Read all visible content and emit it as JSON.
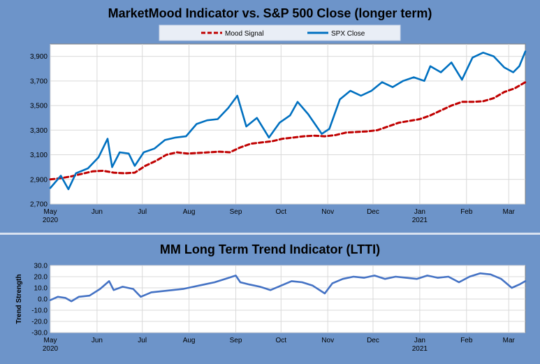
{
  "chart_data": [
    {
      "type": "line",
      "title": "MarketMood Indicator vs. S&P 500 Close (longer term)",
      "legend_position": "top",
      "ylim": [
        2700,
        4000
      ],
      "yticks": [
        "2,700",
        "2,900",
        "3,100",
        "3,300",
        "3,500",
        "3,700",
        "3,900"
      ],
      "ytick_values": [
        2700,
        2900,
        3100,
        3300,
        3500,
        3700,
        3900
      ],
      "grid": true,
      "x_start": "2020-05-01",
      "x_end": "2021-03-12",
      "month_labels": [
        {
          "label": "May",
          "date": "2020-05-01"
        },
        {
          "label": "Jun",
          "date": "2020-06-01"
        },
        {
          "label": "Jul",
          "date": "2020-07-01"
        },
        {
          "label": "Aug",
          "date": "2020-08-01"
        },
        {
          "label": "Sep",
          "date": "2020-09-01"
        },
        {
          "label": "Oct",
          "date": "2020-10-01"
        },
        {
          "label": "Nov",
          "date": "2020-11-01"
        },
        {
          "label": "Dec",
          "date": "2020-12-01"
        },
        {
          "label": "Jan",
          "date": "2021-01-01"
        },
        {
          "label": "Feb",
          "date": "2021-02-01"
        },
        {
          "label": "Mar",
          "date": "2021-03-01"
        }
      ],
      "year_labels": [
        {
          "label": "2020",
          "date": "2020-05-01"
        },
        {
          "label": "2021",
          "date": "2021-01-01"
        }
      ],
      "series": [
        {
          "name": "Mood Signal",
          "color": "#c00000",
          "style": "dashed",
          "points": [
            [
              "2020-05-01",
              2900
            ],
            [
              "2020-05-08",
              2910
            ],
            [
              "2020-05-15",
              2925
            ],
            [
              "2020-05-22",
              2945
            ],
            [
              "2020-05-29",
              2965
            ],
            [
              "2020-06-05",
              2970
            ],
            [
              "2020-06-12",
              2955
            ],
            [
              "2020-06-19",
              2950
            ],
            [
              "2020-06-26",
              2955
            ],
            [
              "2020-07-03",
              3010
            ],
            [
              "2020-07-10",
              3050
            ],
            [
              "2020-07-17",
              3100
            ],
            [
              "2020-07-24",
              3120
            ],
            [
              "2020-07-31",
              3110
            ],
            [
              "2020-08-07",
              3115
            ],
            [
              "2020-08-14",
              3120
            ],
            [
              "2020-08-21",
              3125
            ],
            [
              "2020-08-28",
              3120
            ],
            [
              "2020-09-04",
              3160
            ],
            [
              "2020-09-11",
              3190
            ],
            [
              "2020-09-18",
              3200
            ],
            [
              "2020-09-25",
              3210
            ],
            [
              "2020-10-02",
              3230
            ],
            [
              "2020-10-09",
              3240
            ],
            [
              "2020-10-16",
              3250
            ],
            [
              "2020-10-23",
              3255
            ],
            [
              "2020-10-30",
              3250
            ],
            [
              "2020-11-06",
              3260
            ],
            [
              "2020-11-13",
              3280
            ],
            [
              "2020-11-20",
              3285
            ],
            [
              "2020-11-27",
              3290
            ],
            [
              "2020-12-04",
              3300
            ],
            [
              "2020-12-11",
              3330
            ],
            [
              "2020-12-18",
              3360
            ],
            [
              "2020-12-25",
              3375
            ],
            [
              "2021-01-01",
              3390
            ],
            [
              "2021-01-08",
              3420
            ],
            [
              "2021-01-15",
              3460
            ],
            [
              "2021-01-22",
              3500
            ],
            [
              "2021-01-29",
              3530
            ],
            [
              "2021-02-05",
              3530
            ],
            [
              "2021-02-12",
              3535
            ],
            [
              "2021-02-19",
              3560
            ],
            [
              "2021-02-26",
              3610
            ],
            [
              "2021-03-05",
              3640
            ],
            [
              "2021-03-12",
              3690
            ]
          ]
        },
        {
          "name": "SPX Close",
          "color": "#0070c0",
          "style": "solid",
          "points": [
            [
              "2020-05-01",
              2830
            ],
            [
              "2020-05-08",
              2930
            ],
            [
              "2020-05-13",
              2820
            ],
            [
              "2020-05-18",
              2950
            ],
            [
              "2020-05-26",
              2990
            ],
            [
              "2020-06-02",
              3080
            ],
            [
              "2020-06-08",
              3230
            ],
            [
              "2020-06-11",
              3000
            ],
            [
              "2020-06-16",
              3120
            ],
            [
              "2020-06-22",
              3110
            ],
            [
              "2020-06-26",
              3010
            ],
            [
              "2020-07-02",
              3120
            ],
            [
              "2020-07-09",
              3150
            ],
            [
              "2020-07-16",
              3220
            ],
            [
              "2020-07-23",
              3240
            ],
            [
              "2020-07-30",
              3250
            ],
            [
              "2020-08-06",
              3350
            ],
            [
              "2020-08-13",
              3380
            ],
            [
              "2020-08-20",
              3390
            ],
            [
              "2020-08-27",
              3480
            ],
            [
              "2020-09-02",
              3580
            ],
            [
              "2020-09-08",
              3330
            ],
            [
              "2020-09-15",
              3400
            ],
            [
              "2020-09-23",
              3240
            ],
            [
              "2020-09-30",
              3360
            ],
            [
              "2020-10-07",
              3420
            ],
            [
              "2020-10-12",
              3530
            ],
            [
              "2020-10-19",
              3430
            ],
            [
              "2020-10-28",
              3270
            ],
            [
              "2020-11-02",
              3310
            ],
            [
              "2020-11-09",
              3550
            ],
            [
              "2020-11-16",
              3620
            ],
            [
              "2020-11-23",
              3580
            ],
            [
              "2020-11-30",
              3620
            ],
            [
              "2020-12-07",
              3690
            ],
            [
              "2020-12-14",
              3650
            ],
            [
              "2020-12-21",
              3700
            ],
            [
              "2020-12-28",
              3730
            ],
            [
              "2021-01-04",
              3700
            ],
            [
              "2021-01-08",
              3820
            ],
            [
              "2021-01-15",
              3770
            ],
            [
              "2021-01-22",
              3850
            ],
            [
              "2021-01-29",
              3710
            ],
            [
              "2021-02-05",
              3890
            ],
            [
              "2021-02-12",
              3930
            ],
            [
              "2021-02-19",
              3900
            ],
            [
              "2021-02-26",
              3810
            ],
            [
              "2021-03-04",
              3770
            ],
            [
              "2021-03-08",
              3820
            ],
            [
              "2021-03-12",
              3940
            ]
          ]
        }
      ]
    },
    {
      "type": "line",
      "title": "MM Long Term Trend Indicator (LTTI)",
      "ylabel": "Trend Strength",
      "ylim": [
        -30,
        30
      ],
      "yticks": [
        "-30.0",
        "-20.0",
        "-10.0",
        "0.0",
        "10.0",
        "20.0",
        "30.0"
      ],
      "ytick_values": [
        -30,
        -20,
        -10,
        0,
        10,
        20,
        30
      ],
      "grid": true,
      "x_start": "2020-05-01",
      "x_end": "2021-03-12",
      "month_labels": [
        {
          "label": "May",
          "date": "2020-05-01"
        },
        {
          "label": "Jun",
          "date": "2020-06-01"
        },
        {
          "label": "Jul",
          "date": "2020-07-01"
        },
        {
          "label": "Aug",
          "date": "2020-08-01"
        },
        {
          "label": "Sep",
          "date": "2020-09-01"
        },
        {
          "label": "Oct",
          "date": "2020-10-01"
        },
        {
          "label": "Nov",
          "date": "2020-11-01"
        },
        {
          "label": "Dec",
          "date": "2020-12-01"
        },
        {
          "label": "Jan",
          "date": "2021-01-01"
        },
        {
          "label": "Feb",
          "date": "2021-02-01"
        },
        {
          "label": "Mar",
          "date": "2021-03-01"
        }
      ],
      "year_labels": [
        {
          "label": "2020",
          "date": "2020-05-01"
        },
        {
          "label": "2021",
          "date": "2021-01-01"
        }
      ],
      "series": [
        {
          "name": "LTTI",
          "color": "#4472c4",
          "style": "solid",
          "points": [
            [
              "2020-05-01",
              -1
            ],
            [
              "2020-05-06",
              2
            ],
            [
              "2020-05-11",
              1
            ],
            [
              "2020-05-15",
              -2
            ],
            [
              "2020-05-20",
              2
            ],
            [
              "2020-05-27",
              3
            ],
            [
              "2020-06-03",
              9
            ],
            [
              "2020-06-09",
              16
            ],
            [
              "2020-06-12",
              8
            ],
            [
              "2020-06-18",
              11
            ],
            [
              "2020-06-25",
              9
            ],
            [
              "2020-06-30",
              2
            ],
            [
              "2020-07-07",
              6
            ],
            [
              "2020-07-14",
              7
            ],
            [
              "2020-07-21",
              8
            ],
            [
              "2020-07-28",
              9
            ],
            [
              "2020-08-04",
              11
            ],
            [
              "2020-08-11",
              13
            ],
            [
              "2020-08-18",
              15
            ],
            [
              "2020-08-25",
              18
            ],
            [
              "2020-09-01",
              21
            ],
            [
              "2020-09-04",
              15
            ],
            [
              "2020-09-10",
              13
            ],
            [
              "2020-09-17",
              11
            ],
            [
              "2020-09-24",
              8
            ],
            [
              "2020-10-01",
              12
            ],
            [
              "2020-10-08",
              16
            ],
            [
              "2020-10-15",
              15
            ],
            [
              "2020-10-22",
              12
            ],
            [
              "2020-10-30",
              5
            ],
            [
              "2020-11-04",
              14
            ],
            [
              "2020-11-11",
              18
            ],
            [
              "2020-11-18",
              20
            ],
            [
              "2020-11-25",
              19
            ],
            [
              "2020-12-02",
              21
            ],
            [
              "2020-12-09",
              18
            ],
            [
              "2020-12-16",
              20
            ],
            [
              "2020-12-23",
              19
            ],
            [
              "2020-12-30",
              18
            ],
            [
              "2021-01-06",
              21
            ],
            [
              "2021-01-13",
              19
            ],
            [
              "2021-01-20",
              20
            ],
            [
              "2021-01-27",
              15
            ],
            [
              "2021-02-03",
              20
            ],
            [
              "2021-02-10",
              23
            ],
            [
              "2021-02-17",
              22
            ],
            [
              "2021-02-24",
              18
            ],
            [
              "2021-03-03",
              10
            ],
            [
              "2021-03-08",
              13
            ],
            [
              "2021-03-12",
              16
            ]
          ]
        }
      ]
    }
  ],
  "legend": {
    "mood_label": "Mood Signal",
    "spx_label": "SPX Close"
  },
  "titles": {
    "top": "MarketMood Indicator vs. S&P 500 Close (longer term)",
    "bottom": "MM Long Term Trend Indicator (LTTI)"
  },
  "colors": {
    "background": "#4f81bd",
    "panel": "#6d94c9",
    "plot": "#ffffff",
    "grid": "#d9d9d9",
    "mood": "#c00000",
    "spx": "#0070c0",
    "ltti": "#4472c4"
  }
}
